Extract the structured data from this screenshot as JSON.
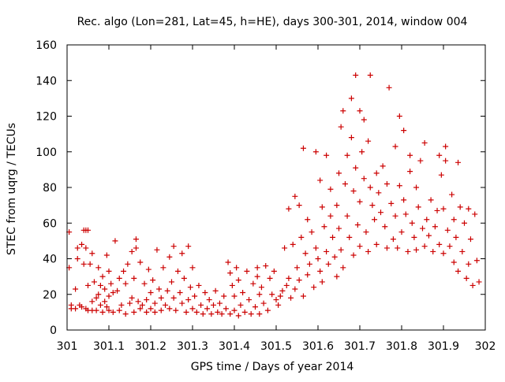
{
  "chart_data": {
    "type": "scatter",
    "title": "Rec. algo (Lon=281, Lat=45, h=HE), days 300-301, 2014, window 004",
    "xlabel": "GPS time / Days of year 2014",
    "ylabel": "STEC from uqrg / TECUs",
    "xlim": [
      301,
      302
    ],
    "ylim": [
      0,
      160
    ],
    "x_ticks": [
      {
        "value": 301.0,
        "label": "301"
      },
      {
        "value": 301.1,
        "label": "301.1"
      },
      {
        "value": 301.2,
        "label": "301.2"
      },
      {
        "value": 301.3,
        "label": "301.3"
      },
      {
        "value": 301.4,
        "label": "301.4"
      },
      {
        "value": 301.5,
        "label": "301.5"
      },
      {
        "value": 301.6,
        "label": "301.6"
      },
      {
        "value": 301.7,
        "label": "301.7"
      },
      {
        "value": 301.8,
        "label": "301.8"
      },
      {
        "value": 301.9,
        "label": "301.9"
      },
      {
        "value": 302.0,
        "label": "302"
      }
    ],
    "y_ticks": [
      {
        "value": 0,
        "label": "0"
      },
      {
        "value": 20,
        "label": "20"
      },
      {
        "value": 40,
        "label": "40"
      },
      {
        "value": 60,
        "label": "60"
      },
      {
        "value": 80,
        "label": "80"
      },
      {
        "value": 100,
        "label": "100"
      },
      {
        "value": 120,
        "label": "120"
      },
      {
        "value": 140,
        "label": "140"
      },
      {
        "value": 160,
        "label": "160"
      }
    ],
    "grid": false,
    "legend": "none",
    "marker": "+",
    "color": "#cc0000",
    "series": [
      {
        "points": [
          [
            301.005,
            55
          ],
          [
            301.005,
            35
          ],
          [
            301.01,
            12
          ],
          [
            301.01,
            14
          ],
          [
            301.02,
            23
          ],
          [
            301.02,
            12
          ],
          [
            301.025,
            40
          ],
          [
            301.025,
            46
          ],
          [
            301.03,
            14
          ],
          [
            301.035,
            48
          ],
          [
            301.035,
            13
          ],
          [
            301.04,
            56
          ],
          [
            301.04,
            37
          ],
          [
            301.045,
            56
          ],
          [
            301.045,
            46
          ],
          [
            301.045,
            12
          ],
          [
            301.05,
            56
          ],
          [
            301.05,
            25
          ],
          [
            301.05,
            11
          ],
          [
            301.055,
            37
          ],
          [
            301.06,
            43
          ],
          [
            301.06,
            16
          ],
          [
            301.06,
            11
          ],
          [
            301.065,
            27
          ],
          [
            301.07,
            18
          ],
          [
            301.07,
            11
          ],
          [
            301.075,
            35
          ],
          [
            301.075,
            20
          ],
          [
            301.08,
            25
          ],
          [
            301.08,
            14
          ],
          [
            301.085,
            30
          ],
          [
            301.085,
            10
          ],
          [
            301.09,
            23
          ],
          [
            301.09,
            16
          ],
          [
            301.095,
            42
          ],
          [
            301.095,
            13
          ],
          [
            301.1,
            33
          ],
          [
            301.1,
            19
          ],
          [
            301.1,
            11
          ],
          [
            301.105,
            26
          ],
          [
            301.11,
            21
          ],
          [
            301.11,
            10
          ],
          [
            301.115,
            50
          ],
          [
            301.12,
            22
          ],
          [
            301.125,
            29
          ],
          [
            301.125,
            11
          ],
          [
            301.13,
            14
          ],
          [
            301.135,
            33
          ],
          [
            301.14,
            26
          ],
          [
            301.14,
            9
          ],
          [
            301.145,
            37
          ],
          [
            301.15,
            15
          ],
          [
            301.155,
            44
          ],
          [
            301.155,
            18
          ],
          [
            301.16,
            29
          ],
          [
            301.16,
            10
          ],
          [
            301.165,
            46
          ],
          [
            301.165,
            51
          ],
          [
            301.17,
            16
          ],
          [
            301.175,
            38
          ],
          [
            301.175,
            12
          ],
          [
            301.18,
            14
          ],
          [
            301.185,
            26
          ],
          [
            301.19,
            17
          ],
          [
            301.19,
            10
          ],
          [
            301.195,
            34
          ],
          [
            301.2,
            21
          ],
          [
            301.2,
            12
          ],
          [
            301.205,
            28
          ],
          [
            301.21,
            15
          ],
          [
            301.21,
            10
          ],
          [
            301.215,
            45
          ],
          [
            301.22,
            23
          ],
          [
            301.225,
            18
          ],
          [
            301.225,
            11
          ],
          [
            301.23,
            35
          ],
          [
            301.235,
            14
          ],
          [
            301.24,
            22
          ],
          [
            301.245,
            41
          ],
          [
            301.245,
            12
          ],
          [
            301.25,
            27
          ],
          [
            301.255,
            47
          ],
          [
            301.255,
            18
          ],
          [
            301.26,
            11
          ],
          [
            301.265,
            33
          ],
          [
            301.27,
            21
          ],
          [
            301.275,
            43
          ],
          [
            301.275,
            15
          ],
          [
            301.28,
            29
          ],
          [
            301.285,
            10
          ],
          [
            301.29,
            47
          ],
          [
            301.29,
            17
          ],
          [
            301.295,
            24
          ],
          [
            301.3,
            35
          ],
          [
            301.3,
            12
          ],
          [
            301.305,
            19
          ],
          [
            301.31,
            10
          ],
          [
            301.315,
            25
          ],
          [
            301.32,
            14
          ],
          [
            301.325,
            9
          ],
          [
            301.33,
            21
          ],
          [
            301.335,
            12
          ],
          [
            301.34,
            17
          ],
          [
            301.345,
            9
          ],
          [
            301.35,
            14
          ],
          [
            301.355,
            22
          ],
          [
            301.36,
            10
          ],
          [
            301.365,
            15
          ],
          [
            301.37,
            9
          ],
          [
            301.375,
            19
          ],
          [
            301.38,
            12
          ],
          [
            301.385,
            38
          ],
          [
            301.39,
            32
          ],
          [
            301.39,
            9
          ],
          [
            301.395,
            25
          ],
          [
            301.4,
            19
          ],
          [
            301.4,
            11
          ],
          [
            301.405,
            35
          ],
          [
            301.41,
            28
          ],
          [
            301.41,
            8
          ],
          [
            301.415,
            14
          ],
          [
            301.42,
            21
          ],
          [
            301.425,
            10
          ],
          [
            301.43,
            33
          ],
          [
            301.435,
            17
          ],
          [
            301.44,
            9
          ],
          [
            301.445,
            26
          ],
          [
            301.45,
            13
          ],
          [
            301.455,
            35
          ],
          [
            301.455,
            30
          ],
          [
            301.46,
            20
          ],
          [
            301.46,
            9
          ],
          [
            301.465,
            24
          ],
          [
            301.47,
            15
          ],
          [
            301.475,
            36
          ],
          [
            301.48,
            11
          ],
          [
            301.485,
            29
          ],
          [
            301.49,
            20
          ],
          [
            301.495,
            33
          ],
          [
            301.5,
            17
          ],
          [
            301.505,
            14
          ],
          [
            301.51,
            19
          ],
          [
            301.515,
            22
          ],
          [
            301.52,
            46
          ],
          [
            301.525,
            25
          ],
          [
            301.53,
            68
          ],
          [
            301.53,
            29
          ],
          [
            301.535,
            18
          ],
          [
            301.54,
            48
          ],
          [
            301.545,
            75
          ],
          [
            301.545,
            23
          ],
          [
            301.55,
            35
          ],
          [
            301.555,
            70
          ],
          [
            301.555,
            28
          ],
          [
            301.56,
            52
          ],
          [
            301.565,
            102
          ],
          [
            301.565,
            19
          ],
          [
            301.57,
            43
          ],
          [
            301.575,
            62
          ],
          [
            301.575,
            31
          ],
          [
            301.58,
            37
          ],
          [
            301.585,
            55
          ],
          [
            301.59,
            24
          ],
          [
            301.595,
            100
          ],
          [
            301.595,
            46
          ],
          [
            301.6,
            40
          ],
          [
            301.605,
            84
          ],
          [
            301.605,
            33
          ],
          [
            301.61,
            69
          ],
          [
            301.61,
            27
          ],
          [
            301.615,
            58
          ],
          [
            301.62,
            98
          ],
          [
            301.62,
            44
          ],
          [
            301.625,
            37
          ],
          [
            301.63,
            79
          ],
          [
            301.63,
            64
          ],
          [
            301.635,
            52
          ],
          [
            301.64,
            41
          ],
          [
            301.645,
            70
          ],
          [
            301.645,
            30
          ],
          [
            301.65,
            88
          ],
          [
            301.65,
            57
          ],
          [
            301.655,
            114
          ],
          [
            301.655,
            45
          ],
          [
            301.66,
            123
          ],
          [
            301.66,
            35
          ],
          [
            301.665,
            82
          ],
          [
            301.67,
            98
          ],
          [
            301.67,
            64
          ],
          [
            301.675,
            52
          ],
          [
            301.68,
            130
          ],
          [
            301.68,
            108
          ],
          [
            301.685,
            78
          ],
          [
            301.685,
            42
          ],
          [
            301.69,
            143
          ],
          [
            301.69,
            91
          ],
          [
            301.695,
            59
          ],
          [
            301.7,
            123
          ],
          [
            301.7,
            72
          ],
          [
            301.7,
            47
          ],
          [
            301.705,
            100
          ],
          [
            301.71,
            118
          ],
          [
            301.71,
            85
          ],
          [
            301.715,
            55
          ],
          [
            301.72,
            106
          ],
          [
            301.72,
            44
          ],
          [
            301.725,
            143
          ],
          [
            301.725,
            80
          ],
          [
            301.73,
            70
          ],
          [
            301.735,
            62
          ],
          [
            301.74,
            88
          ],
          [
            301.74,
            48
          ],
          [
            301.745,
            77
          ],
          [
            301.75,
            66
          ],
          [
            301.755,
            92
          ],
          [
            301.76,
            58
          ],
          [
            301.765,
            82
          ],
          [
            301.765,
            46
          ],
          [
            301.77,
            136
          ],
          [
            301.775,
            71
          ],
          [
            301.78,
            51
          ],
          [
            301.785,
            103
          ],
          [
            301.785,
            64
          ],
          [
            301.79,
            46
          ],
          [
            301.795,
            120
          ],
          [
            301.795,
            81
          ],
          [
            301.8,
            55
          ],
          [
            301.805,
            112
          ],
          [
            301.805,
            73
          ],
          [
            301.81,
            65
          ],
          [
            301.815,
            44
          ],
          [
            301.82,
            98
          ],
          [
            301.82,
            89
          ],
          [
            301.825,
            60
          ],
          [
            301.83,
            52
          ],
          [
            301.835,
            80
          ],
          [
            301.835,
            45
          ],
          [
            301.84,
            69
          ],
          [
            301.845,
            95
          ],
          [
            301.85,
            57
          ],
          [
            301.855,
            105
          ],
          [
            301.855,
            47
          ],
          [
            301.86,
            62
          ],
          [
            301.865,
            53
          ],
          [
            301.87,
            73
          ],
          [
            301.875,
            44
          ],
          [
            301.88,
            58
          ],
          [
            301.885,
            67
          ],
          [
            301.89,
            98
          ],
          [
            301.89,
            48
          ],
          [
            301.895,
            87
          ],
          [
            301.9,
            68
          ],
          [
            301.9,
            43
          ],
          [
            301.905,
            103
          ],
          [
            301.905,
            95
          ],
          [
            301.91,
            56
          ],
          [
            301.915,
            47
          ],
          [
            301.92,
            76
          ],
          [
            301.925,
            62
          ],
          [
            301.925,
            38
          ],
          [
            301.93,
            52
          ],
          [
            301.935,
            94
          ],
          [
            301.935,
            33
          ],
          [
            301.94,
            69
          ],
          [
            301.945,
            44
          ],
          [
            301.95,
            60
          ],
          [
            301.955,
            29
          ],
          [
            301.96,
            68
          ],
          [
            301.96,
            37
          ],
          [
            301.965,
            51
          ],
          [
            301.97,
            25
          ],
          [
            301.975,
            65
          ],
          [
            301.98,
            39
          ],
          [
            301.985,
            27
          ]
        ]
      }
    ]
  }
}
